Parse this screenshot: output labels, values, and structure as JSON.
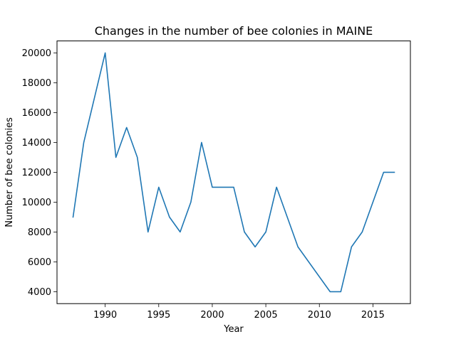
{
  "chart_data": {
    "type": "line",
    "title": "Changes in the number of bee colonies in MAINE",
    "xlabel": "Year",
    "ylabel": "Number of bee colonies",
    "xlim": [
      1985.5,
      2018.5
    ],
    "ylim": [
      3200,
      20800
    ],
    "xticks": [
      1990,
      1995,
      2000,
      2005,
      2010,
      2015
    ],
    "yticks": [
      4000,
      6000,
      8000,
      10000,
      12000,
      14000,
      16000,
      18000,
      20000
    ],
    "grid": false,
    "series": [
      {
        "color": "#1f77b4",
        "x": [
          1987,
          1988,
          1990,
          1991,
          1992,
          1993,
          1994,
          1995,
          1996,
          1997,
          1998,
          1999,
          2000,
          2001,
          2002,
          2003,
          2004,
          2005,
          2006,
          2008,
          2011,
          2012,
          2013,
          2014,
          2016,
          2017
        ],
        "y": [
          9000,
          14000,
          20000,
          13000,
          15000,
          13000,
          8000,
          11000,
          9000,
          8000,
          10000,
          14000,
          11000,
          11000,
          11000,
          8000,
          7000,
          8000,
          11000,
          7000,
          4000,
          4000,
          7000,
          8000,
          12000,
          12000
        ]
      }
    ]
  }
}
